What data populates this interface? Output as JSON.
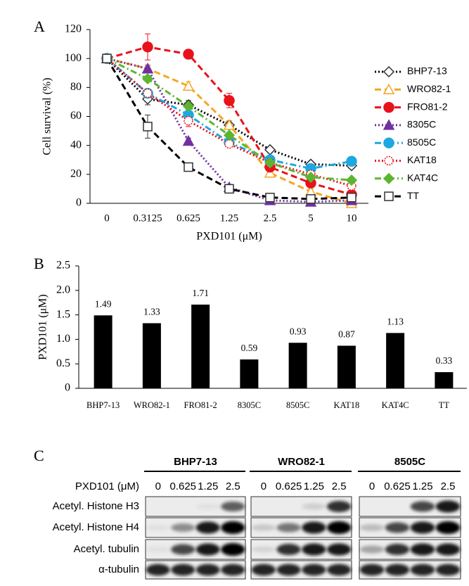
{
  "chart_data": [
    {
      "type": "line",
      "panel": "A",
      "ylabel": "Cell survival (%)",
      "xlabel": "PXD101 (μM)",
      "categories": [
        "0",
        "0.3125",
        "0.625",
        "1.25",
        "2.5",
        "5",
        "10"
      ],
      "ylim": [
        0,
        120
      ],
      "yticks": [
        0,
        20,
        40,
        60,
        80,
        100,
        120
      ],
      "series": [
        {
          "name": "BHP7-13",
          "color": "#000000",
          "dash": "dot",
          "marker": "diamond-open",
          "values": [
            100,
            72,
            68,
            54,
            37,
            27,
            26
          ],
          "errors": [
            2,
            4,
            3,
            3,
            2,
            2,
            2
          ]
        },
        {
          "name": "WRO82-1",
          "color": "#f5a623",
          "dash": "dash",
          "marker": "triangle-open",
          "values": [
            100,
            93,
            81,
            54,
            21,
            8,
            0
          ],
          "errors": [
            2,
            3,
            3,
            3,
            3,
            2,
            2
          ]
        },
        {
          "name": "FRO81-2",
          "color": "#e8121b",
          "dash": "dash",
          "marker": "circle",
          "values": [
            100,
            108,
            103,
            71,
            25,
            14,
            6
          ],
          "errors": [
            2,
            9,
            2,
            5,
            3,
            2,
            2
          ]
        },
        {
          "name": "8305C",
          "color": "#7030a0",
          "dash": "dot",
          "marker": "triangle",
          "values": [
            100,
            93,
            43,
            11,
            2,
            1,
            2
          ],
          "errors": [
            2,
            2,
            2,
            2,
            1,
            1,
            1
          ]
        },
        {
          "name": "8505C",
          "color": "#1ea8e0",
          "dash": "dashdot",
          "marker": "circle",
          "values": [
            100,
            76,
            61,
            42,
            30,
            24,
            29
          ],
          "errors": [
            2,
            2,
            3,
            2,
            2,
            2,
            2
          ]
        },
        {
          "name": "KAT18",
          "color": "#e8121b",
          "dash": "dot",
          "marker": "circle-open",
          "values": [
            100,
            76,
            57,
            41,
            28,
            20,
            12
          ],
          "errors": [
            2,
            3,
            4,
            2,
            2,
            2,
            2
          ]
        },
        {
          "name": "KAT4C",
          "color": "#5cb531",
          "dash": "dashdot",
          "marker": "diamond",
          "values": [
            100,
            86,
            67,
            47,
            28,
            18,
            16
          ],
          "errors": [
            2,
            2,
            2,
            2,
            2,
            2,
            2
          ]
        },
        {
          "name": "TT",
          "color": "#000000",
          "dash": "dash",
          "marker": "square-open",
          "values": [
            100,
            53,
            25,
            10,
            4,
            3,
            4
          ],
          "errors": [
            2,
            8,
            2,
            2,
            1,
            1,
            1
          ]
        }
      ]
    },
    {
      "type": "bar",
      "panel": "B",
      "ylabel": "PXD101 (μM)",
      "categories": [
        "BHP7-13",
        "WRO82-1",
        "FRO81-2",
        "8305C",
        "8505C",
        "KAT18",
        "KAT4C",
        "TT"
      ],
      "values": [
        1.49,
        1.33,
        1.71,
        0.59,
        0.93,
        0.87,
        1.13,
        0.33
      ],
      "color": "#000000",
      "ylim": [
        0,
        2.5
      ],
      "yticks": [
        0,
        0.5,
        {
          "value": 1,
          "label": "1.0"
        },
        1.5,
        {
          "value": 2,
          "label": "2.0"
        },
        2.5
      ]
    }
  ],
  "blot": {
    "panel": "C",
    "dose_label": "PXD101 (μM)",
    "cell_lines": [
      "BHP7-13",
      "WRO82-1",
      "8505C"
    ],
    "doses": [
      "0",
      "0.625",
      "1.25",
      "2.5"
    ],
    "rows": [
      "Acetyl. Histone H3",
      "Acetyl. Histone H4",
      "Acetyl. tubulin",
      "α-tubulin"
    ]
  }
}
